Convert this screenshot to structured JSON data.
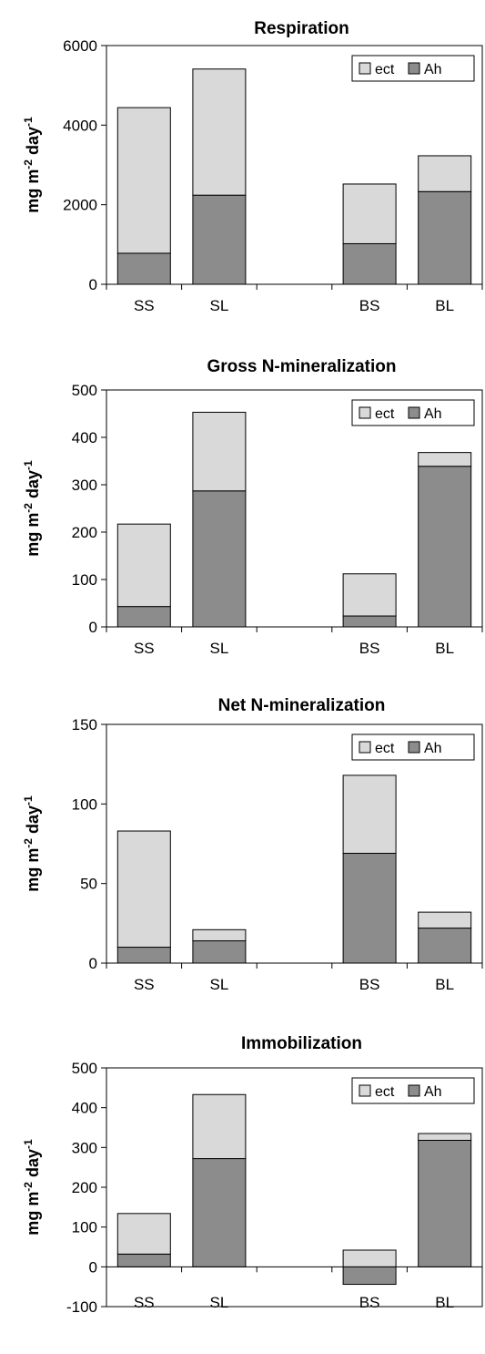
{
  "chart_data": [
    {
      "type": "bar",
      "stacked": true,
      "title": "Respiration",
      "ylabel": "mg m-2 day-1",
      "categories": [
        "SS",
        "SL",
        "",
        "BS",
        "BL"
      ],
      "series": [
        {
          "name": "Ah",
          "values": [
            780,
            2240,
            null,
            1020,
            2330
          ]
        },
        {
          "name": "ect",
          "values": [
            3660,
            3170,
            null,
            1500,
            900
          ]
        }
      ],
      "ylim": [
        0,
        6000
      ],
      "yticks": [
        "0",
        "2000",
        "4000",
        "6000"
      ],
      "legend": "top-right",
      "colors": {
        "ect": "#d9d9d9",
        "Ah": "#8c8c8c"
      }
    },
    {
      "type": "bar",
      "stacked": true,
      "title": "Gross N-mineralization",
      "ylabel": "mg m-2 day-1",
      "categories": [
        "SS",
        "SL",
        "",
        "BS",
        "BL"
      ],
      "series": [
        {
          "name": "Ah",
          "values": [
            43,
            287,
            null,
            23,
            339
          ]
        },
        {
          "name": "ect",
          "values": [
            174,
            166,
            null,
            89,
            29
          ]
        }
      ],
      "ylim": [
        0,
        500
      ],
      "yticks": [
        "0",
        "100",
        "200",
        "300",
        "400",
        "500"
      ],
      "legend": "top-right",
      "colors": {
        "ect": "#d9d9d9",
        "Ah": "#8c8c8c"
      }
    },
    {
      "type": "bar",
      "stacked": true,
      "title": "Net N-mineralization",
      "ylabel": "mg m-2 day-1",
      "categories": [
        "SS",
        "SL",
        "",
        "BS",
        "BL"
      ],
      "series": [
        {
          "name": "Ah",
          "values": [
            10,
            14,
            null,
            69,
            22
          ]
        },
        {
          "name": "ect",
          "values": [
            73,
            7,
            null,
            49,
            10
          ]
        }
      ],
      "ylim": [
        0,
        150
      ],
      "yticks": [
        "0",
        "50",
        "100",
        "150"
      ],
      "legend": "top-right",
      "colors": {
        "ect": "#d9d9d9",
        "Ah": "#8c8c8c"
      }
    },
    {
      "type": "bar",
      "stacked": true,
      "title": "Immobilization",
      "ylabel": "mg m-2 day-1",
      "categories": [
        "SS",
        "SL",
        "",
        "BS",
        "BL"
      ],
      "series": [
        {
          "name": "Ah",
          "values": [
            32,
            272,
            null,
            -44,
            318
          ]
        },
        {
          "name": "ect",
          "values": [
            102,
            161,
            null,
            42,
            17
          ]
        }
      ],
      "ylim": [
        -100,
        500
      ],
      "yticks": [
        "-100",
        "0",
        "100",
        "200",
        "300",
        "400",
        "500"
      ],
      "legend": "top-right",
      "colors": {
        "ect": "#d9d9d9",
        "Ah": "#8c8c8c"
      }
    }
  ]
}
